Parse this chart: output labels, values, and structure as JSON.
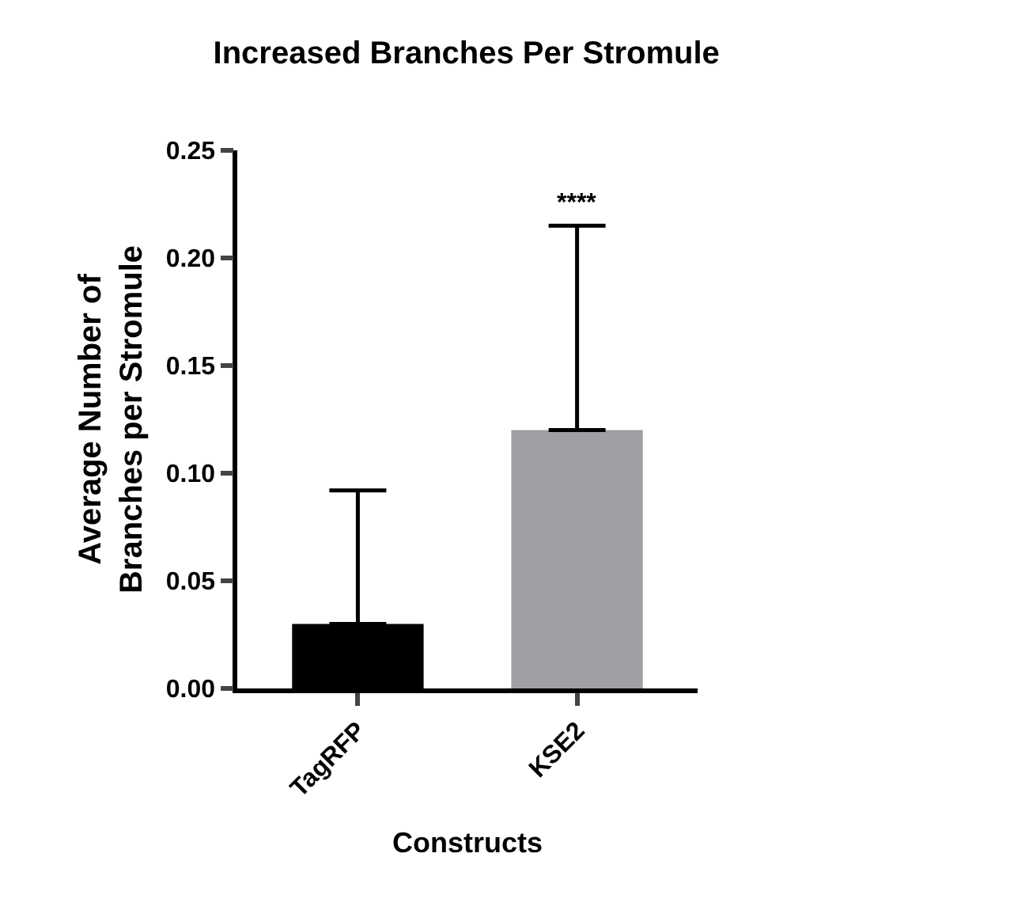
{
  "chart_data": {
    "type": "bar",
    "title": "Increased Branches Per Stromule",
    "xlabel": "Constructs",
    "ylabel": "Average Number of\nBranches per Stromule",
    "categories": [
      "TagRFP",
      "KSE2"
    ],
    "values": [
      0.03,
      0.12
    ],
    "colors": [
      "#000000",
      "#a0a0a4"
    ],
    "errors": [
      [
        0.03,
        0.092
      ],
      [
        0.12,
        0.215
      ]
    ],
    "ylim": [
      0,
      0.25
    ],
    "yticks": [
      {
        "value": 0,
        "label": "0.00"
      },
      {
        "value": 0.05,
        "label": "0.05"
      },
      {
        "value": 0.1,
        "label": "0.10"
      },
      {
        "value": 0.15,
        "label": "0.15"
      },
      {
        "value": 0.2,
        "label": "0.20"
      },
      {
        "value": 0.25,
        "label": "0.25"
      }
    ],
    "annotations": [
      "****"
    ]
  }
}
